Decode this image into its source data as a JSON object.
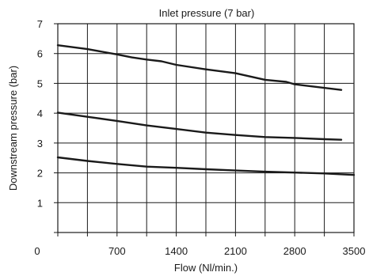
{
  "chart_data": {
    "type": "line",
    "title": "Inlet pressure (7 bar)",
    "xlabel": "Flow (Nl/min.)",
    "ylabel": "Downstream pressure  (bar)",
    "xlim": [
      0,
      3500
    ],
    "ylim": [
      0,
      7
    ],
    "x_ticks": [
      0,
      700,
      1400,
      2100,
      2800,
      3500
    ],
    "y_ticks": [
      1,
      2,
      3,
      4,
      5,
      6,
      7
    ],
    "x_grid_step": 350,
    "grid": true,
    "series": [
      {
        "color": "#1a1a1a",
        "points": [
          [
            0,
            6.28
          ],
          [
            350,
            6.15
          ],
          [
            700,
            5.97
          ],
          [
            875,
            5.87
          ],
          [
            1050,
            5.8
          ],
          [
            1225,
            5.74
          ],
          [
            1400,
            5.62
          ],
          [
            1750,
            5.47
          ],
          [
            2100,
            5.34
          ],
          [
            2450,
            5.12
          ],
          [
            2700,
            5.05
          ],
          [
            2800,
            4.97
          ],
          [
            3000,
            4.9
          ],
          [
            3350,
            4.78
          ]
        ]
      },
      {
        "color": "#1a1a1a",
        "points": [
          [
            0,
            4.02
          ],
          [
            350,
            3.88
          ],
          [
            700,
            3.74
          ],
          [
            1050,
            3.59
          ],
          [
            1400,
            3.47
          ],
          [
            1750,
            3.35
          ],
          [
            2100,
            3.27
          ],
          [
            2450,
            3.2
          ],
          [
            2800,
            3.17
          ],
          [
            3150,
            3.13
          ],
          [
            3350,
            3.11
          ]
        ]
      },
      {
        "color": "#1a1a1a",
        "points": [
          [
            0,
            2.52
          ],
          [
            350,
            2.4
          ],
          [
            700,
            2.3
          ],
          [
            1050,
            2.21
          ],
          [
            1400,
            2.17
          ],
          [
            1750,
            2.12
          ],
          [
            2100,
            2.08
          ],
          [
            2450,
            2.04
          ],
          [
            2800,
            2.01
          ],
          [
            3150,
            1.98
          ],
          [
            3500,
            1.93
          ]
        ]
      }
    ]
  }
}
